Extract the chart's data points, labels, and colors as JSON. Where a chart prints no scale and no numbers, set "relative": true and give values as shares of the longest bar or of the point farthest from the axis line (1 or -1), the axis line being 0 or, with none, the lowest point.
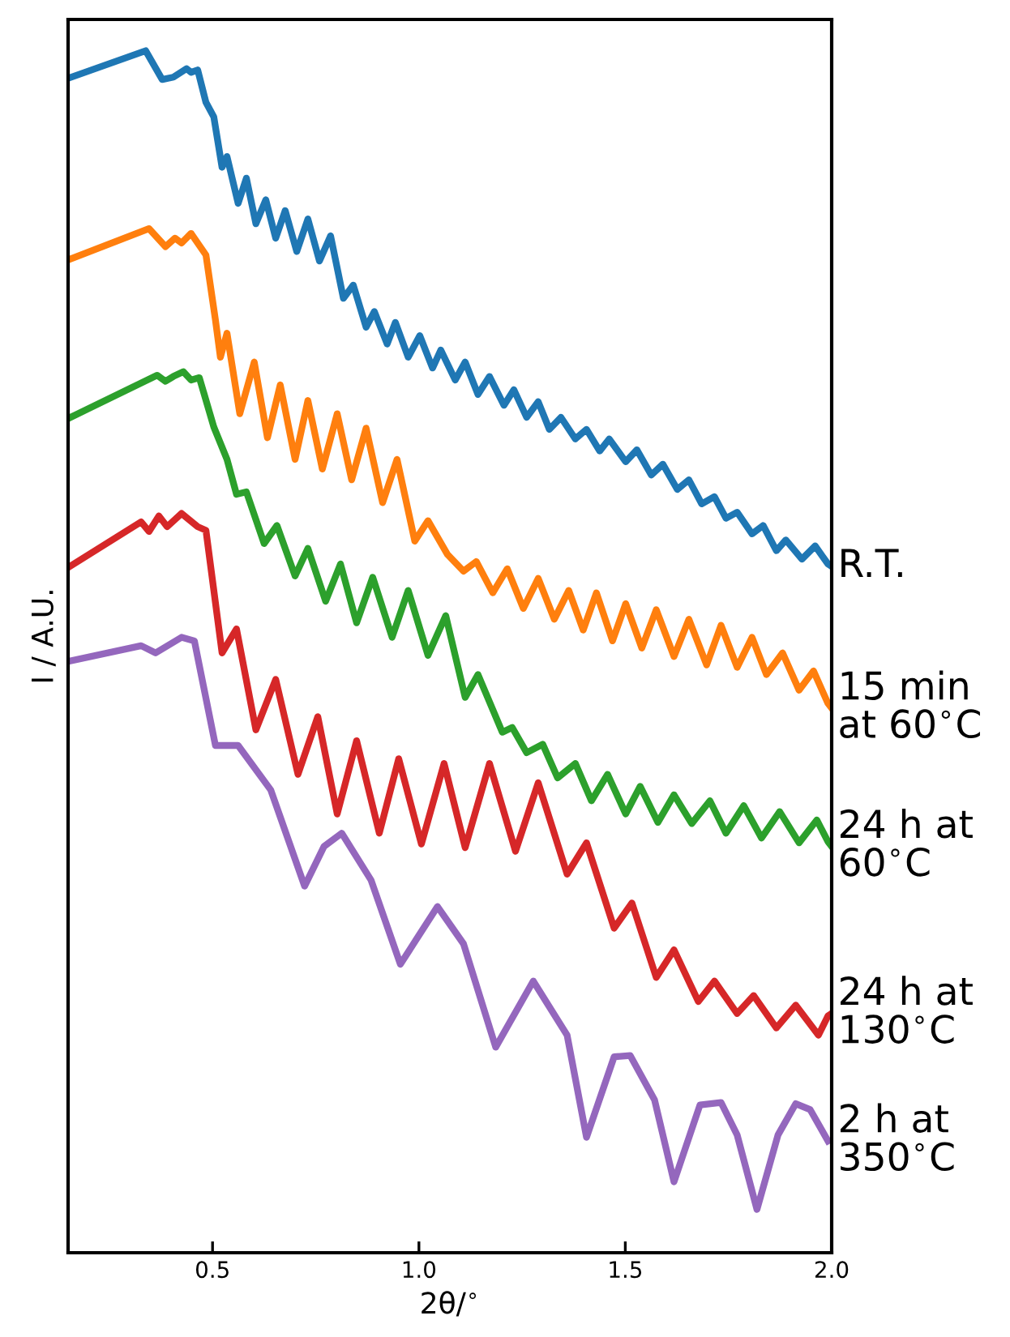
{
  "chart_data": {
    "type": "line",
    "relative": true,
    "xlabel": "2θ/$^{∘}$",
    "ylabel": "I / A.U.",
    "xlim": [
      0.15,
      2.0
    ],
    "xticks": [
      0.5,
      {
        "value": 1.0,
        "label": "1.0"
      },
      1.5,
      {
        "value": 2.0,
        "label": "2.0"
      }
    ],
    "grid": false,
    "legend": false,
    "marker": "none",
    "line_style": "solid",
    "series": [
      {
        "name": "R.T.",
        "color": "#1f77b4",
        "x": [
          0.15,
          0.338,
          0.378,
          0.405,
          0.437,
          0.448,
          0.464,
          0.484,
          0.503,
          0.523,
          0.535,
          0.562,
          0.582,
          0.605,
          0.629,
          0.653,
          0.676,
          0.704,
          0.731,
          0.759,
          0.786,
          0.817,
          0.841,
          0.872,
          0.892,
          0.923,
          0.943,
          0.974,
          1.002,
          1.033,
          1.053,
          1.088,
          1.112,
          1.143,
          1.171,
          1.206,
          1.23,
          1.261,
          1.289,
          1.316,
          1.344,
          1.379,
          1.406,
          1.438,
          1.461,
          1.501,
          1.528,
          1.563,
          1.591,
          1.626,
          1.654,
          1.685,
          1.716,
          1.744,
          1.771,
          1.807,
          1.834,
          1.866,
          1.889,
          1.928,
          1.96,
          1.991,
          2.0
        ],
        "values": [
          0.977,
          1.0,
          0.976,
          0.978,
          0.985,
          0.982,
          0.984,
          0.957,
          0.945,
          0.903,
          0.912,
          0.873,
          0.894,
          0.856,
          0.876,
          0.844,
          0.867,
          0.833,
          0.86,
          0.825,
          0.846,
          0.794,
          0.805,
          0.77,
          0.783,
          0.756,
          0.774,
          0.745,
          0.763,
          0.736,
          0.751,
          0.726,
          0.741,
          0.714,
          0.729,
          0.705,
          0.718,
          0.695,
          0.708,
          0.685,
          0.695,
          0.677,
          0.685,
          0.667,
          0.677,
          0.658,
          0.668,
          0.647,
          0.656,
          0.635,
          0.643,
          0.623,
          0.629,
          0.611,
          0.616,
          0.598,
          0.605,
          0.584,
          0.593,
          0.577,
          0.588,
          0.573,
          0.571
        ]
      },
      {
        "name": "15 min\nat 60$^{∘}$C",
        "color": "#ff7f0e",
        "x": [
          0.15,
          0.346,
          0.386,
          0.409,
          0.425,
          0.448,
          0.484,
          0.507,
          0.519,
          0.535,
          0.566,
          0.601,
          0.633,
          0.664,
          0.7,
          0.731,
          0.766,
          0.802,
          0.837,
          0.872,
          0.912,
          0.947,
          0.99,
          1.022,
          1.069,
          1.108,
          1.139,
          1.179,
          1.214,
          1.253,
          1.289,
          1.328,
          1.363,
          1.398,
          1.43,
          1.469,
          1.501,
          1.54,
          1.575,
          1.618,
          1.654,
          1.697,
          1.732,
          1.771,
          1.807,
          1.842,
          1.881,
          1.921,
          1.956,
          1.991,
          2.0
        ],
        "values": [
          0.826,
          0.852,
          0.837,
          0.844,
          0.84,
          0.848,
          0.83,
          0.776,
          0.745,
          0.765,
          0.698,
          0.741,
          0.678,
          0.722,
          0.66,
          0.709,
          0.652,
          0.698,
          0.643,
          0.686,
          0.624,
          0.66,
          0.592,
          0.609,
          0.581,
          0.567,
          0.575,
          0.549,
          0.569,
          0.536,
          0.561,
          0.527,
          0.551,
          0.518,
          0.549,
          0.509,
          0.54,
          0.503,
          0.535,
          0.496,
          0.527,
          0.489,
          0.522,
          0.487,
          0.512,
          0.481,
          0.499,
          0.468,
          0.484,
          0.457,
          0.453
        ]
      },
      {
        "name": "24 h at\n60$^{∘}$C",
        "color": "#2ca02c",
        "x": [
          0.15,
          0.366,
          0.386,
          0.405,
          0.429,
          0.448,
          0.468,
          0.503,
          0.535,
          0.558,
          0.582,
          0.625,
          0.656,
          0.7,
          0.731,
          0.774,
          0.81,
          0.849,
          0.888,
          0.935,
          0.974,
          1.022,
          1.065,
          1.112,
          1.143,
          1.202,
          1.226,
          1.261,
          1.3,
          1.336,
          1.379,
          1.418,
          1.457,
          1.501,
          1.536,
          1.579,
          1.618,
          1.661,
          1.705,
          1.744,
          1.787,
          1.83,
          1.874,
          1.921,
          1.964,
          1.991,
          2.0
        ],
        "values": [
          0.694,
          0.73,
          0.725,
          0.729,
          0.733,
          0.726,
          0.728,
          0.687,
          0.66,
          0.631,
          0.633,
          0.59,
          0.605,
          0.563,
          0.586,
          0.542,
          0.573,
          0.524,
          0.562,
          0.512,
          0.551,
          0.497,
          0.53,
          0.462,
          0.481,
          0.433,
          0.437,
          0.416,
          0.423,
          0.395,
          0.407,
          0.376,
          0.398,
          0.365,
          0.388,
          0.358,
          0.381,
          0.357,
          0.376,
          0.349,
          0.372,
          0.345,
          0.367,
          0.341,
          0.36,
          0.342,
          0.338
        ]
      },
      {
        "name": "24 h at\n130$^{∘}$C",
        "color": "#d62728",
        "x": [
          0.15,
          0.327,
          0.346,
          0.37,
          0.39,
          0.425,
          0.464,
          0.484,
          0.523,
          0.558,
          0.605,
          0.653,
          0.707,
          0.755,
          0.802,
          0.849,
          0.904,
          0.951,
          1.006,
          1.061,
          1.112,
          1.171,
          1.234,
          1.289,
          1.359,
          1.406,
          1.473,
          1.516,
          1.575,
          1.618,
          1.677,
          1.716,
          1.771,
          1.811,
          1.866,
          1.913,
          1.968,
          1.991,
          2.0
        ],
        "values": [
          0.57,
          0.608,
          0.6,
          0.613,
          0.604,
          0.615,
          0.604,
          0.601,
          0.499,
          0.519,
          0.435,
          0.477,
          0.398,
          0.446,
          0.365,
          0.426,
          0.349,
          0.411,
          0.34,
          0.407,
          0.337,
          0.407,
          0.334,
          0.391,
          0.315,
          0.341,
          0.27,
          0.291,
          0.229,
          0.252,
          0.209,
          0.226,
          0.199,
          0.214,
          0.187,
          0.206,
          0.181,
          0.197,
          0.199
        ]
      },
      {
        "name": "2 h at\n350$^{∘}$C",
        "color": "#9467bd",
        "x": [
          0.15,
          0.327,
          0.362,
          0.425,
          0.456,
          0.507,
          0.562,
          0.641,
          0.723,
          0.77,
          0.813,
          0.884,
          0.955,
          1.045,
          1.108,
          1.186,
          1.277,
          1.359,
          1.406,
          1.473,
          1.512,
          1.571,
          1.618,
          1.681,
          1.732,
          1.771,
          1.819,
          1.87,
          1.913,
          1.948,
          1.991
        ],
        "values": [
          0.492,
          0.505,
          0.499,
          0.512,
          0.509,
          0.422,
          0.422,
          0.385,
          0.305,
          0.338,
          0.349,
          0.31,
          0.24,
          0.288,
          0.257,
          0.171,
          0.226,
          0.181,
          0.096,
          0.163,
          0.164,
          0.127,
          0.059,
          0.123,
          0.125,
          0.098,
          0.036,
          0.098,
          0.124,
          0.119,
          0.093
        ]
      }
    ]
  }
}
